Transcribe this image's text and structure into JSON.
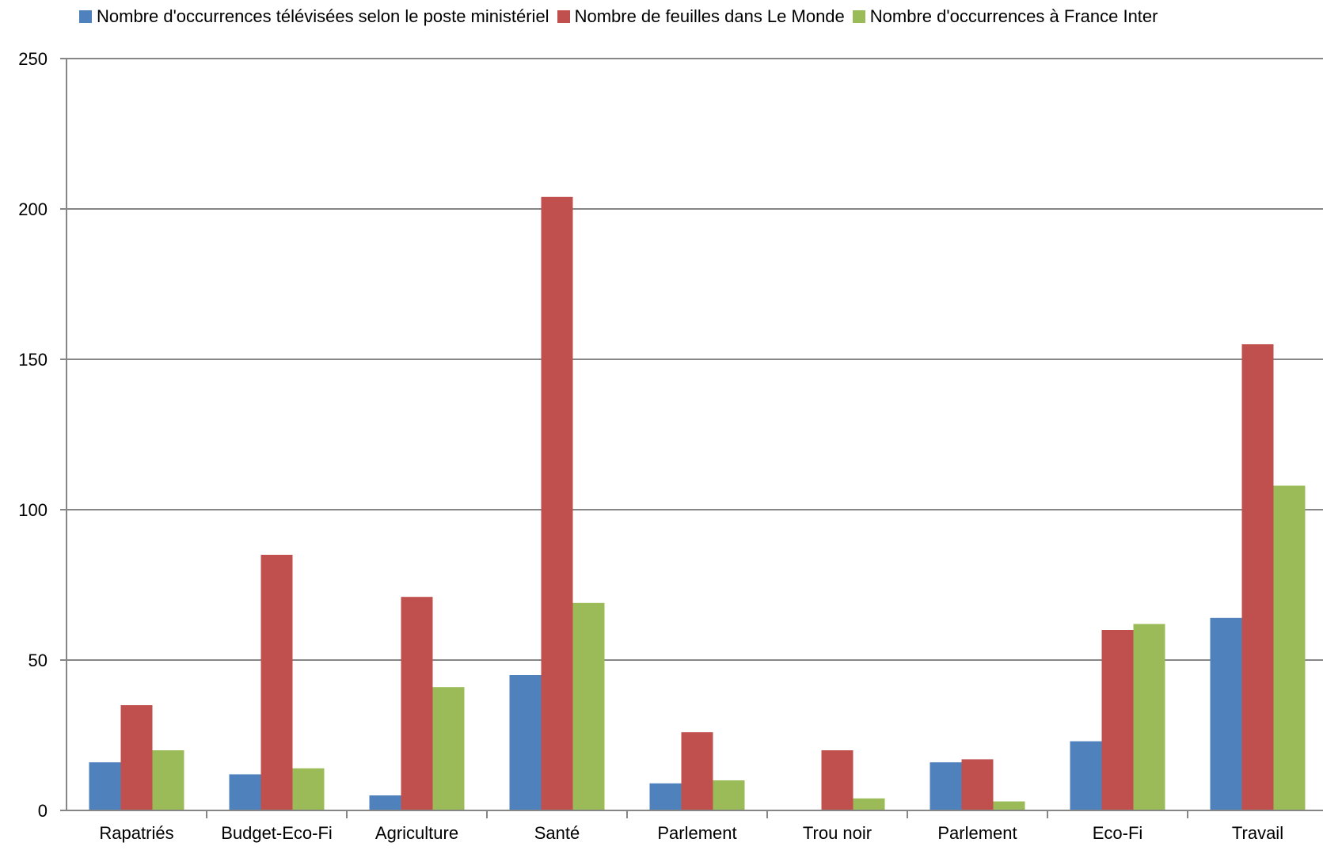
{
  "chart_data": {
    "type": "bar",
    "categories": [
      "Rapatriés",
      "Budget-Eco-Fi",
      "Agriculture",
      "Santé",
      "Parlement",
      "Trou noir",
      "Parlement",
      "Eco-Fi",
      "Travail"
    ],
    "series": [
      {
        "name": "Nombre d'occurrences télévisées selon le poste ministériel",
        "color": "#4f81bd",
        "values": [
          16,
          12,
          5,
          45,
          9,
          0,
          16,
          23,
          64
        ]
      },
      {
        "name": "Nombre de feuilles dans Le Monde",
        "color": "#c0504d",
        "values": [
          35,
          85,
          71,
          204,
          26,
          20,
          17,
          60,
          155
        ]
      },
      {
        "name": "Nombre d'occurrences à France Inter",
        "color": "#9bbb59",
        "values": [
          20,
          14,
          41,
          69,
          10,
          4,
          3,
          62,
          108
        ]
      }
    ],
    "yticks": [
      "0",
      "50",
      "100",
      "150",
      "200",
      "250"
    ],
    "ylim": [
      0,
      250
    ],
    "grid": true,
    "legend_position": "top"
  }
}
